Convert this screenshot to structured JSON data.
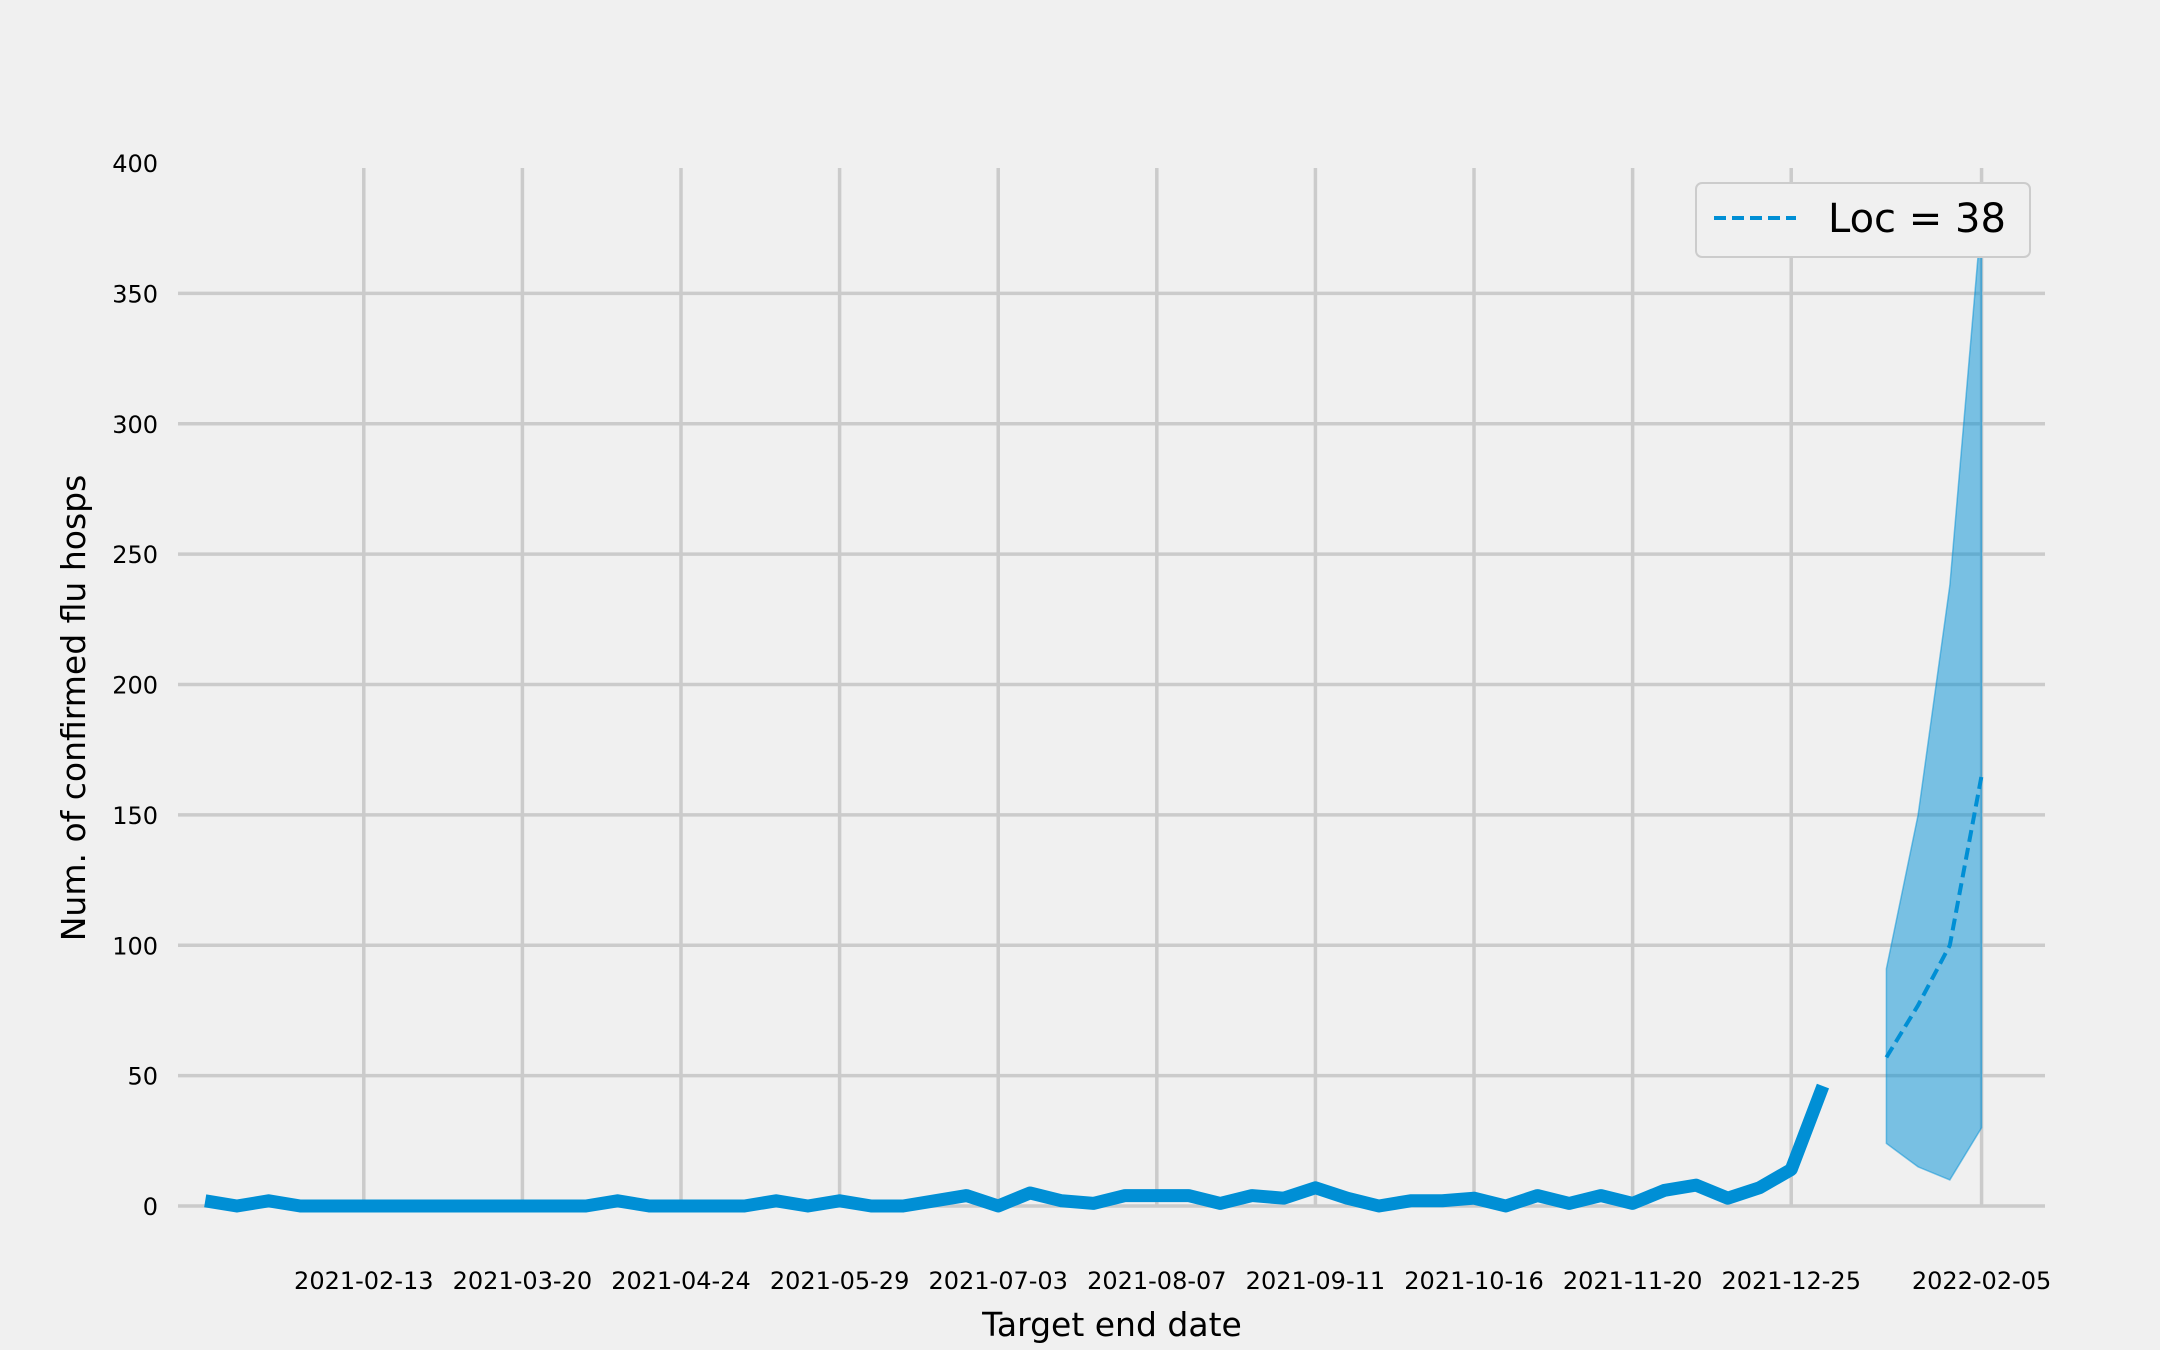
{
  "chart_data": {
    "type": "line",
    "title": "",
    "xlabel": "Target end date",
    "ylabel": "Num. of confirmed flu hosps",
    "ylim": [
      0,
      400
    ],
    "yticks": [
      0,
      50,
      100,
      150,
      200,
      250,
      300,
      350,
      400
    ],
    "xlim": [
      "2021-01-03",
      "2022-02-19"
    ],
    "xticks": [
      "2021-02-13",
      "2021-03-20",
      "2021-04-24",
      "2021-05-29",
      "2021-07-03",
      "2021-08-07",
      "2021-09-11",
      "2021-10-16",
      "2021-11-20",
      "2021-12-25",
      "2022-02-05"
    ],
    "grid": true,
    "legend": {
      "label": "Loc = 38",
      "position": "top-right"
    },
    "colors": {
      "series": "#008fd5",
      "band": "#008fd5",
      "background": "#f0f0f0",
      "grid": "#cbcbcb"
    },
    "series": [
      {
        "name": "observed",
        "style": "solid",
        "x": [
          "2021-01-09",
          "2021-01-16",
          "2021-01-23",
          "2021-01-30",
          "2021-02-06",
          "2021-02-13",
          "2021-02-20",
          "2021-02-27",
          "2021-03-06",
          "2021-03-13",
          "2021-03-20",
          "2021-03-27",
          "2021-04-03",
          "2021-04-10",
          "2021-04-17",
          "2021-04-24",
          "2021-05-01",
          "2021-05-08",
          "2021-05-15",
          "2021-05-22",
          "2021-05-29",
          "2021-06-05",
          "2021-06-12",
          "2021-06-19",
          "2021-06-26",
          "2021-07-03",
          "2021-07-10",
          "2021-07-17",
          "2021-07-24",
          "2021-07-31",
          "2021-08-07",
          "2021-08-14",
          "2021-08-21",
          "2021-08-28",
          "2021-09-04",
          "2021-09-11",
          "2021-09-18",
          "2021-09-25",
          "2021-10-02",
          "2021-10-09",
          "2021-10-16",
          "2021-10-23",
          "2021-10-30",
          "2021-11-06",
          "2021-11-13",
          "2021-11-20",
          "2021-11-27",
          "2021-12-04",
          "2021-12-11",
          "2021-12-18",
          "2021-12-25",
          "2022-01-01"
        ],
        "values": [
          2,
          0,
          2,
          0,
          0,
          0,
          0,
          0,
          0,
          0,
          0,
          0,
          0,
          2,
          0,
          0,
          0,
          0,
          2,
          0,
          2,
          0,
          0,
          2,
          4,
          0,
          5,
          2,
          1,
          4,
          4,
          4,
          1,
          4,
          3,
          7,
          3,
          0,
          2,
          2,
          3,
          0,
          4,
          1,
          4,
          1,
          6,
          8,
          3,
          7,
          14,
          46
        ]
      },
      {
        "name": "forecast",
        "style": "dashed",
        "x": [
          "2022-01-15",
          "2022-01-22",
          "2022-01-29",
          "2022-02-05"
        ],
        "values": [
          57,
          77,
          100,
          165
        ],
        "lower": [
          24,
          15,
          10,
          30
        ],
        "upper": [
          91,
          150,
          238,
          380
        ]
      }
    ]
  }
}
